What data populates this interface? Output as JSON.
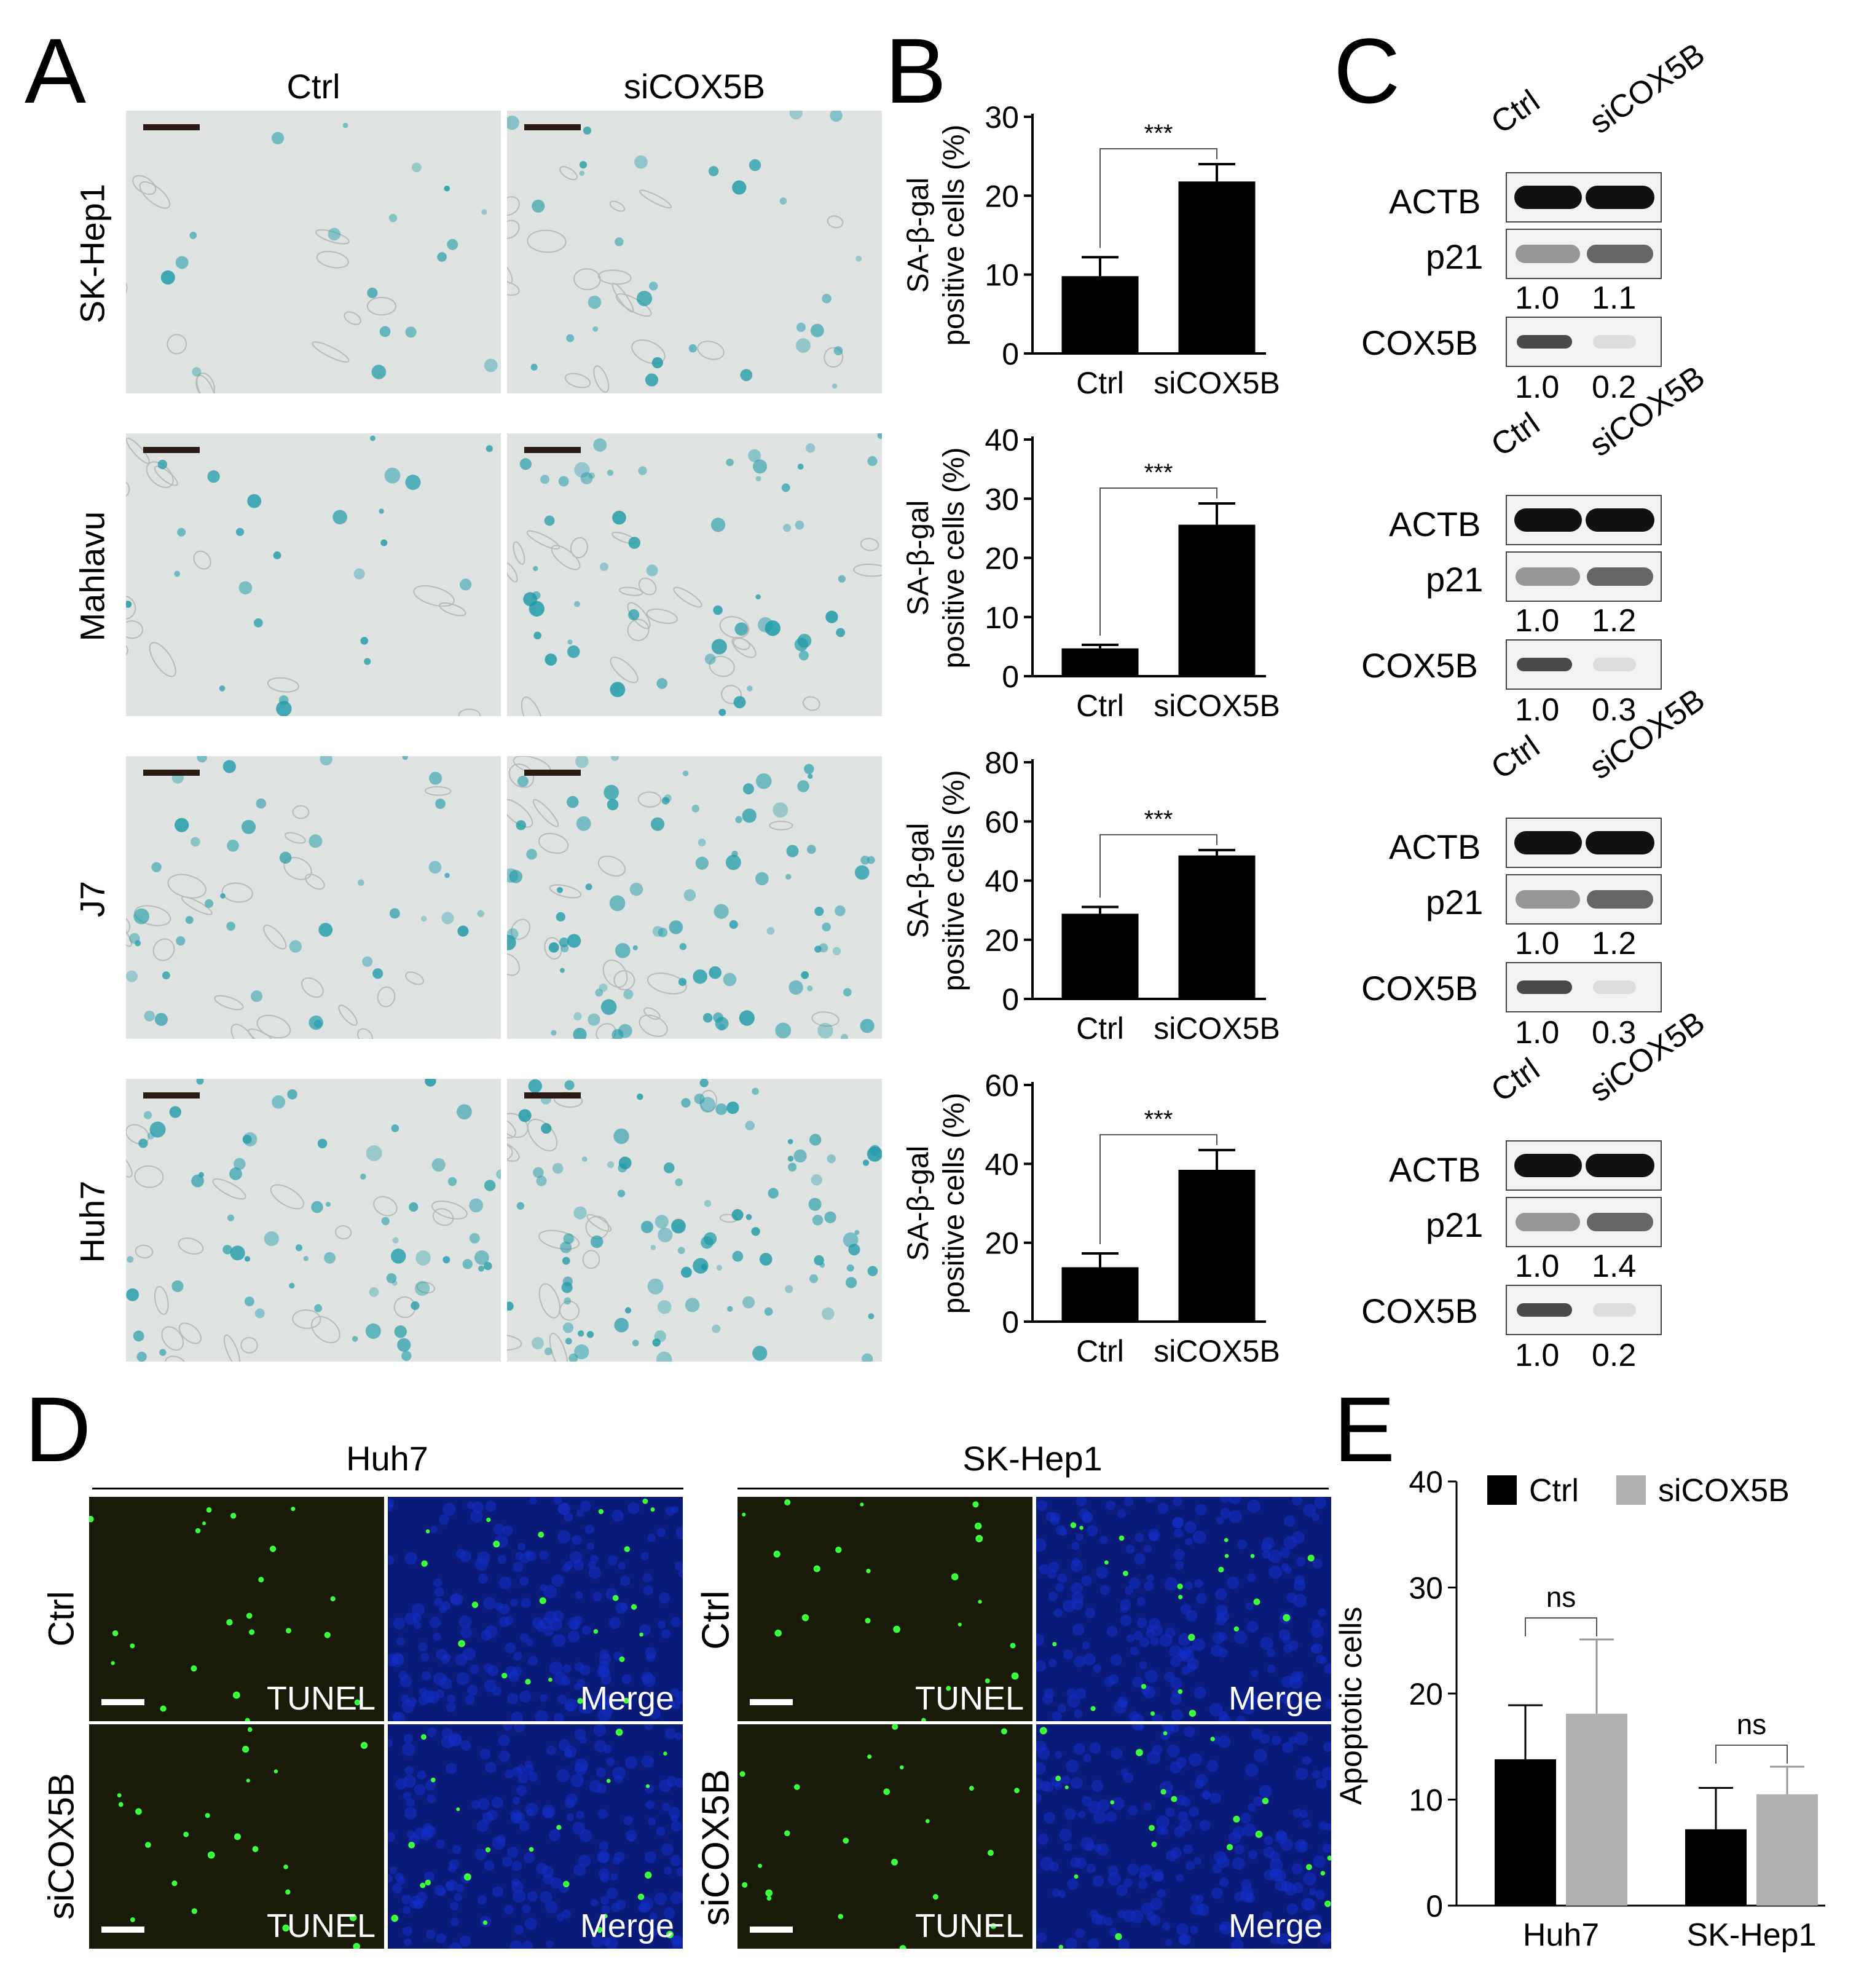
{
  "panels": {
    "A": "A",
    "B": "B",
    "C": "C",
    "D": "D",
    "E": "E"
  },
  "panel_a": {
    "columns": [
      "Ctrl",
      "siCOX5B"
    ],
    "rows": [
      "SK-Hep1",
      "Mahlavu",
      "J7",
      "Huh7"
    ],
    "stain_density": [
      [
        0.15,
        0.25
      ],
      [
        0.2,
        0.45
      ],
      [
        0.35,
        0.75
      ],
      [
        0.55,
        0.85
      ]
    ]
  },
  "panel_c": {
    "lanes": [
      "Ctrl",
      "siCOX5B"
    ],
    "proteins": [
      "ACTB",
      "p21",
      "COX5B"
    ],
    "blots": [
      {
        "p21": [
          "1.0",
          "1.1"
        ],
        "cox5b": [
          "1.0",
          "0.2"
        ]
      },
      {
        "p21": [
          "1.0",
          "1.2"
        ],
        "cox5b": [
          "1.0",
          "0.3"
        ]
      },
      {
        "p21": [
          "1.0",
          "1.2"
        ],
        "cox5b": [
          "1.0",
          "0.3"
        ]
      },
      {
        "p21": [
          "1.0",
          "1.4"
        ],
        "cox5b": [
          "1.0",
          "0.2"
        ]
      }
    ]
  },
  "panel_d": {
    "groups": [
      "Huh7",
      "SK-Hep1"
    ],
    "rows": [
      "Ctrl",
      "siCOX5B"
    ],
    "channels": [
      "TUNEL",
      "Merge"
    ],
    "colors": {
      "tunel_bg": "#1a1a08",
      "merge_bg": "#0a1a78",
      "signal": "#3cff3c"
    }
  },
  "chart_data": [
    {
      "type": "bar",
      "panel": "B",
      "cell_line": "SK-Hep1",
      "categories": [
        "Ctrl",
        "siCOX5B"
      ],
      "values": [
        9.8,
        21.8
      ],
      "errors": [
        2.4,
        2.2
      ],
      "ylabel": "SA-β-gal positive cells (%)",
      "ylim": [
        0,
        30
      ],
      "yticks": [
        0,
        10,
        20,
        30
      ],
      "annotation": "***",
      "bar_color": "#000000"
    },
    {
      "type": "bar",
      "panel": "B",
      "cell_line": "Mahlavu",
      "categories": [
        "Ctrl",
        "siCOX5B"
      ],
      "values": [
        4.7,
        25.6
      ],
      "errors": [
        0.6,
        3.6
      ],
      "ylabel": "SA-β-gal positive cells (%)",
      "ylim": [
        0,
        40
      ],
      "yticks": [
        0,
        10,
        20,
        30,
        40
      ],
      "annotation": "***",
      "bar_color": "#000000"
    },
    {
      "type": "bar",
      "panel": "B",
      "cell_line": "J7",
      "categories": [
        "Ctrl",
        "siCOX5B"
      ],
      "values": [
        28.8,
        48.5
      ],
      "errors": [
        2.3,
        1.8
      ],
      "ylabel": "SA-β-gal positive cells (%)",
      "ylim": [
        0,
        80
      ],
      "yticks": [
        0,
        20,
        40,
        60,
        80
      ],
      "annotation": "***",
      "bar_color": "#000000"
    },
    {
      "type": "bar",
      "panel": "B",
      "cell_line": "Huh7",
      "categories": [
        "Ctrl",
        "siCOX5B"
      ],
      "values": [
        13.8,
        38.5
      ],
      "errors": [
        3.5,
        5.0
      ],
      "ylabel": "SA-β-gal positive cells (%)",
      "ylim": [
        0,
        60
      ],
      "yticks": [
        0,
        20,
        40,
        60
      ],
      "annotation": "***",
      "bar_color": "#000000"
    },
    {
      "type": "bar",
      "panel": "E",
      "categories": [
        "Huh7",
        "SK-Hep1"
      ],
      "series": [
        {
          "name": "Ctrl",
          "values": [
            13.8,
            7.2
          ],
          "errors": [
            5.1,
            3.9
          ],
          "color": "#000000"
        },
        {
          "name": "siCOX5B",
          "values": [
            18.1,
            10.5
          ],
          "errors": [
            7.0,
            2.6
          ],
          "color": "#b0b0b0"
        }
      ],
      "ylabel": "Apoptotic cells",
      "ylim": [
        0,
        40
      ],
      "yticks": [
        0,
        10,
        20,
        30,
        40
      ],
      "annotations": [
        "ns",
        "ns"
      ],
      "legend": "top"
    }
  ]
}
